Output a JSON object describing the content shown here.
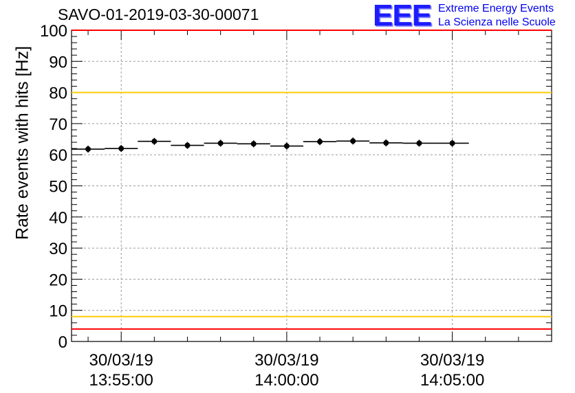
{
  "header": {
    "title": "SAVO-01-2019-03-30-00071",
    "logo": "EEE",
    "logo_line1": "Extreme Energy Events",
    "logo_line2": "La Scienza nelle Scuole"
  },
  "chart_data": {
    "type": "scatter",
    "title": "SAVO-01-2019-03-30-00071",
    "ylabel": "Rate events with hits [Hz]",
    "xlabel": "",
    "ylim": [
      0,
      100
    ],
    "yticks": [
      0,
      10,
      20,
      30,
      40,
      50,
      60,
      70,
      80,
      90,
      100
    ],
    "xlim_minutes": [
      -6.5,
      8.0
    ],
    "xticks": [
      {
        "minute": -5,
        "date": "30/03/19",
        "time": "13:55:00"
      },
      {
        "minute": 0,
        "date": "30/03/19",
        "time": "14:00:00"
      },
      {
        "minute": 5,
        "date": "30/03/19",
        "time": "14:05:00"
      }
    ],
    "series": [
      {
        "name": "rate",
        "bin_width_minutes": 1.0,
        "x_minutes": [
          -6.0,
          -5.0,
          -4.0,
          -3.0,
          -2.0,
          -1.0,
          0.0,
          1.0,
          2.0,
          3.0,
          4.0,
          5.0
        ],
        "values": [
          61.8,
          62.0,
          64.3,
          63.0,
          63.7,
          63.5,
          62.8,
          64.2,
          64.4,
          63.8,
          63.7,
          63.7
        ]
      }
    ],
    "reference_lines": [
      {
        "value": 100,
        "color": "#ff0000"
      },
      {
        "value": 80,
        "color": "#ffcc00"
      },
      {
        "value": 8,
        "color": "#ffcc00"
      },
      {
        "value": 4,
        "color": "#ff0000"
      }
    ],
    "grid": true
  }
}
